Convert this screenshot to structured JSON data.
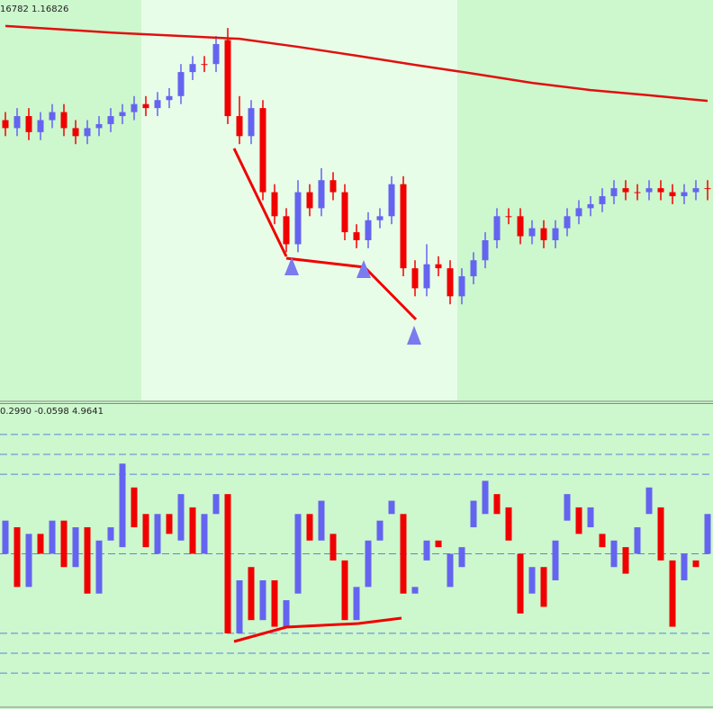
{
  "chart_data": [
    {
      "type": "candlestick",
      "header": "16782 1.16826",
      "ylim": [
        0,
        100
      ],
      "up_color": "#6464f0",
      "down_color": "#f00000",
      "open": [
        70,
        68,
        71,
        67,
        70,
        72,
        68,
        66,
        68,
        69,
        71,
        72,
        74,
        73,
        75,
        76,
        82,
        84,
        84,
        90,
        71,
        66,
        73,
        52,
        46,
        39,
        52,
        48,
        55,
        52,
        42,
        40,
        45,
        46,
        54,
        33,
        28,
        34,
        33,
        26,
        31,
        35,
        40,
        46,
        46,
        41,
        43,
        40,
        43,
        46,
        48,
        49,
        51,
        53,
        52,
        52,
        53,
        52,
        51,
        52,
        53
      ],
      "high": [
        72,
        73,
        73,
        72,
        74,
        74,
        70,
        70,
        71,
        73,
        74,
        76,
        76,
        77,
        78,
        84,
        86,
        86,
        91,
        93,
        76,
        75,
        75,
        54,
        48,
        55,
        54,
        58,
        57,
        54,
        44,
        47,
        48,
        56,
        56,
        35,
        39,
        36,
        35,
        33,
        37,
        42,
        48,
        48,
        48,
        45,
        45,
        45,
        48,
        50,
        51,
        53,
        55,
        55,
        54,
        55,
        55,
        54,
        54,
        55,
        55
      ],
      "low": [
        66,
        66,
        65,
        65,
        68,
        66,
        64,
        64,
        66,
        67,
        69,
        70,
        71,
        71,
        73,
        74,
        80,
        82,
        82,
        69,
        64,
        64,
        50,
        44,
        37,
        37,
        46,
        46,
        50,
        40,
        38,
        38,
        43,
        44,
        31,
        26,
        26,
        31,
        24,
        24,
        29,
        33,
        38,
        44,
        39,
        39,
        38,
        38,
        41,
        44,
        46,
        47,
        49,
        50,
        50,
        50,
        50,
        49,
        49,
        50,
        50
      ],
      "close": [
        68,
        71,
        67,
        70,
        72,
        68,
        66,
        68,
        69,
        71,
        72,
        74,
        73,
        75,
        76,
        82,
        84,
        84,
        89,
        71,
        66,
        73,
        52,
        46,
        39,
        52,
        48,
        55,
        52,
        42,
        40,
        45,
        46,
        54,
        33,
        28,
        34,
        33,
        26,
        31,
        35,
        40,
        46,
        46,
        41,
        43,
        40,
        43,
        46,
        48,
        49,
        51,
        53,
        52,
        52,
        53,
        52,
        51,
        52,
        53,
        53
      ],
      "moving_average": {
        "color": "#e01010",
        "x": [
          0,
          5,
          10,
          15,
          20,
          25,
          30,
          35,
          40,
          45,
          50,
          55,
          60
        ],
        "values": [
          93.5,
          92.6,
          91.7,
          91,
          90.3,
          88.3,
          86.1,
          83.8,
          81.6,
          79.3,
          77.5,
          76.2,
          74.8
        ]
      }
    },
    {
      "type": "candlestick",
      "header": "0.2990 -0.0598 4.9641",
      "ylim": [
        -115,
        115
      ],
      "yticks": [
        -90,
        -75,
        -60,
        0,
        60,
        75,
        90
      ],
      "grid": true,
      "up_color": "#6464f0",
      "down_color": "#f00000",
      "open": [
        0,
        20,
        -25,
        15,
        0,
        25,
        -10,
        20,
        -30,
        10,
        5,
        50,
        30,
        0,
        30,
        10,
        35,
        0,
        30,
        45,
        -60,
        -10,
        -50,
        -20,
        -55,
        -30,
        30,
        10,
        15,
        -5,
        -50,
        -25,
        10,
        30,
        30,
        -30,
        -5,
        10,
        -25,
        -10,
        20,
        30,
        45,
        35,
        0,
        -30,
        -10,
        -20,
        25,
        35,
        20,
        15,
        -10,
        5,
        0,
        30,
        35,
        -5,
        -20,
        -5,
        0
      ],
      "close": [
        25,
        -25,
        15,
        0,
        25,
        -10,
        20,
        -30,
        10,
        20,
        68,
        20,
        5,
        30,
        15,
        45,
        0,
        30,
        45,
        -60,
        -20,
        -50,
        -20,
        -55,
        -35,
        30,
        10,
        40,
        -5,
        -50,
        -25,
        10,
        25,
        40,
        -30,
        -25,
        10,
        5,
        0,
        5,
        40,
        55,
        30,
        10,
        -45,
        -10,
        -40,
        10,
        45,
        15,
        35,
        5,
        10,
        -15,
        20,
        50,
        -5,
        -55,
        0,
        -10,
        30
      ]
    }
  ]
}
